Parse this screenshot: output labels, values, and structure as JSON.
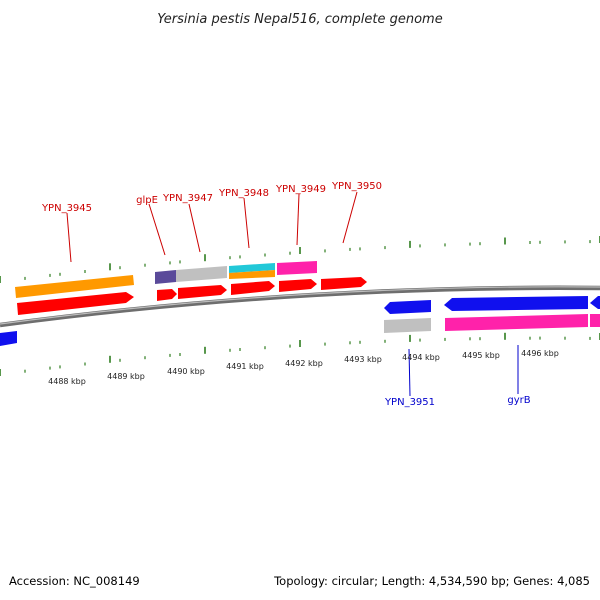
{
  "title": "Yersinia pestis Nepal516, complete genome",
  "footer": {
    "accession": "Accession: NC_008149",
    "summary": "Topology: circular; Length: 4,534,590 bp; Genes: 4,085"
  },
  "colors": {
    "label_top": "#cc0000",
    "label_bottom": "#0000cc",
    "tick": "#2e7d1f",
    "backbone": "#8a8a8a",
    "red": "#ff0000",
    "orange": "#ff9900",
    "gray": "#c0c0c0",
    "purple": "#5a4a9a",
    "cyan": "#22c8d8",
    "magenta": "#ff22aa",
    "blue": "#1010ee"
  },
  "gene_labels_top": [
    "YPN_3945",
    "glpE",
    "YPN_3947",
    "YPN_3948",
    "YPN_3949",
    "YPN_3950"
  ],
  "gene_labels_bottom": [
    "YPN_3951",
    "gyrB"
  ],
  "kbp_labels": [
    "4488 kbp",
    "4489 kbp",
    "4490 kbp",
    "4491 kbp",
    "4492 kbp",
    "4493 kbp",
    "4494 kbp",
    "4495 kbp",
    "4496 kbp"
  ]
}
